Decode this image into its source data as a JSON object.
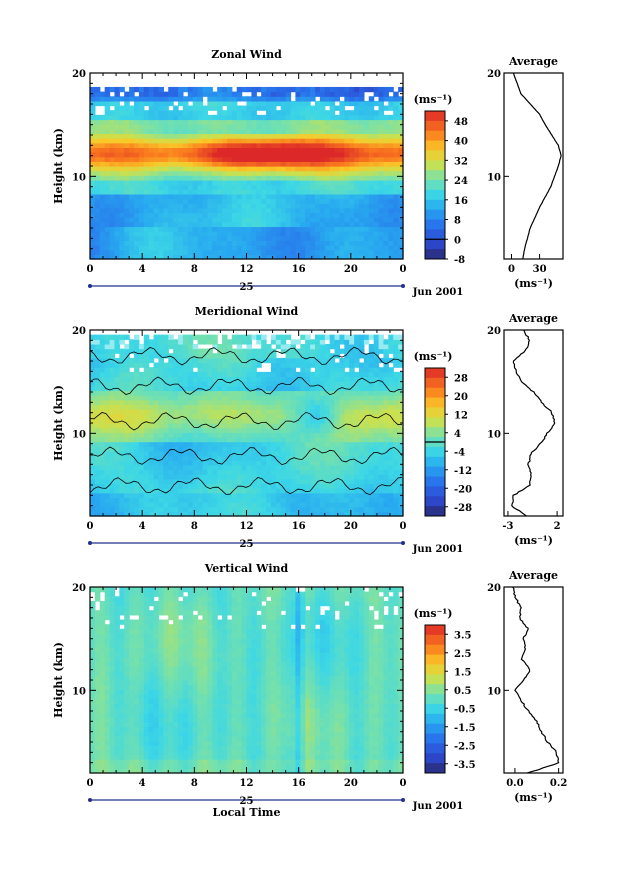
{
  "chart_data": [
    {
      "type": "heatmap",
      "title": "Zonal Wind",
      "ylabel": "Height (km)",
      "xlabel": "",
      "x_ticks": [
        "0",
        "4",
        "8",
        "12",
        "16",
        "20",
        "0"
      ],
      "y_ticks": [
        "10",
        "20"
      ],
      "xlim": [
        0,
        24
      ],
      "ylim": [
        2,
        20
      ],
      "day_label": "25",
      "date_label": "Jun 2001",
      "colorbar": {
        "unit_label": "(ms⁻¹)",
        "tick_labels": [
          "48",
          "40",
          "32",
          "24",
          "16",
          "8",
          "0",
          "-8"
        ],
        "range": [
          -8,
          52
        ],
        "zero_line": 0
      },
      "profile": {
        "title": "Average",
        "x_ticks": [
          "0",
          "30"
        ],
        "unit_label": "(ms⁻¹)",
        "y_ticks": [
          "10",
          "20"
        ],
        "xlim": [
          -8,
          55
        ],
        "heights": [
          2,
          3,
          4,
          5,
          6,
          7,
          8,
          9,
          10,
          11,
          12,
          13,
          14,
          15,
          16,
          17,
          18,
          19,
          20
        ],
        "values": [
          12,
          14,
          17,
          20,
          25,
          30,
          36,
          42,
          46,
          50,
          53,
          50,
          43,
          36,
          30,
          20,
          10,
          6,
          2
        ]
      }
    },
    {
      "type": "heatmap",
      "title": "Meridional Wind",
      "ylabel": "Height (km)",
      "xlabel": "",
      "x_ticks": [
        "0",
        "4",
        "8",
        "12",
        "16",
        "20",
        "0"
      ],
      "y_ticks": [
        "10",
        "20"
      ],
      "xlim": [
        0,
        24
      ],
      "ylim": [
        2,
        20
      ],
      "day_label": "25",
      "date_label": "Jun 2001",
      "colorbar": {
        "unit_label": "(ms⁻¹)",
        "tick_labels": [
          "28",
          "20",
          "12",
          "4",
          "-4",
          "-12",
          "-20",
          "-28"
        ],
        "range": [
          -32,
          32
        ],
        "zero_line": 0
      },
      "profile": {
        "title": "Average",
        "x_ticks": [
          "-3",
          "2"
        ],
        "unit_label": "(ms⁻¹)",
        "y_ticks": [
          "10",
          "20"
        ],
        "xlim": [
          -3.4,
          2.6
        ],
        "heights": [
          2,
          3,
          4,
          5,
          6,
          7,
          8,
          9,
          10,
          11,
          12,
          13,
          14,
          15,
          16,
          17,
          18,
          19,
          20
        ],
        "values": [
          -1.2,
          -2.6,
          -2.4,
          -0.8,
          -0.6,
          -0.9,
          -0.7,
          0.3,
          1.0,
          1.8,
          1.5,
          0.4,
          -0.4,
          -1.6,
          -2.2,
          -2.5,
          -1.2,
          -0.8,
          -1.4
        ]
      }
    },
    {
      "type": "heatmap",
      "title": "Vertical Wind",
      "ylabel": "Height (km)",
      "xlabel": "Local Time",
      "x_ticks": [
        "0",
        "4",
        "8",
        "12",
        "16",
        "20",
        "0"
      ],
      "y_ticks": [
        "10",
        "20"
      ],
      "xlim": [
        0,
        24
      ],
      "ylim": [
        2,
        20
      ],
      "day_label": "25",
      "date_label": "Jun 2001",
      "colorbar": {
        "unit_label": "(ms⁻¹)",
        "tick_labels": [
          "3.5",
          "2.5",
          "1.5",
          "0.5",
          "-0.5",
          "-1.5",
          "-2.5",
          "-3.5"
        ],
        "range": [
          -4,
          4
        ],
        "zero_line": null
      },
      "profile": {
        "title": "Average",
        "x_ticks": [
          "0.0",
          "0.2"
        ],
        "unit_label": "(ms⁻¹)",
        "y_ticks": [
          "10",
          "20"
        ],
        "xlim": [
          -0.05,
          0.22
        ],
        "heights": [
          2,
          3,
          4,
          5,
          6,
          7,
          8,
          9,
          10,
          11,
          12,
          13,
          14,
          15,
          16,
          17,
          18,
          19,
          20
        ],
        "values": [
          0.06,
          0.2,
          0.19,
          0.15,
          0.12,
          0.1,
          0.06,
          0.03,
          0.0,
          0.04,
          0.07,
          0.03,
          0.05,
          0.04,
          0.06,
          0.02,
          0.03,
          0.0,
          -0.01
        ]
      }
    }
  ]
}
